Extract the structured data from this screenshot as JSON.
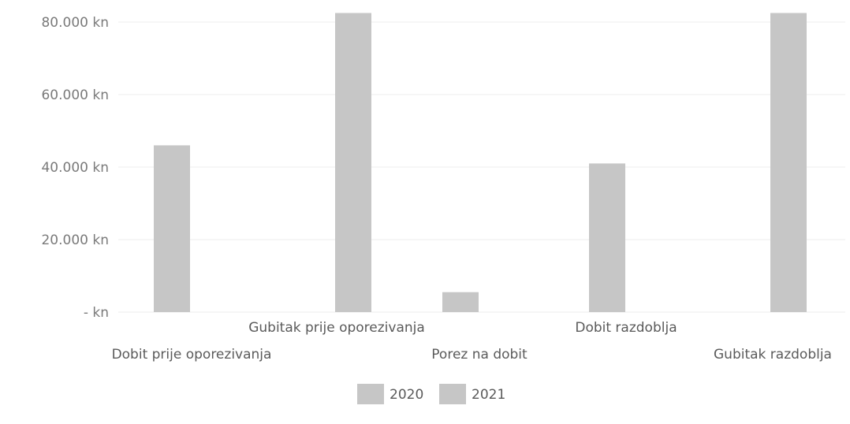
{
  "chart_data": {
    "type": "bar",
    "categories": [
      "Dobit prije oporezivanja",
      "Gubitak prije oporezivanja",
      "Porez na dobit",
      "Dobit razdoblja",
      "Gubitak razdoblja"
    ],
    "series": [
      {
        "name": "2020",
        "values": [
          46000,
          82500,
          5500,
          41000,
          82500
        ]
      },
      {
        "name": "2021",
        "values": [
          0,
          0,
          0,
          0,
          0
        ]
      }
    ],
    "yticks": [
      {
        "value": 0,
        "label": "- kn"
      },
      {
        "value": 20000,
        "label": "20.000 kn"
      },
      {
        "value": 40000,
        "label": "40.000 kn"
      },
      {
        "value": 60000,
        "label": "60.000 kn"
      },
      {
        "value": 80000,
        "label": "80.000 kn"
      }
    ],
    "ylim": [
      0,
      82500
    ],
    "grid": true,
    "legend": "bottom",
    "colors": {
      "bar_2020": "#c6c6c6",
      "bar_2021": "#c6c6c6"
    }
  }
}
